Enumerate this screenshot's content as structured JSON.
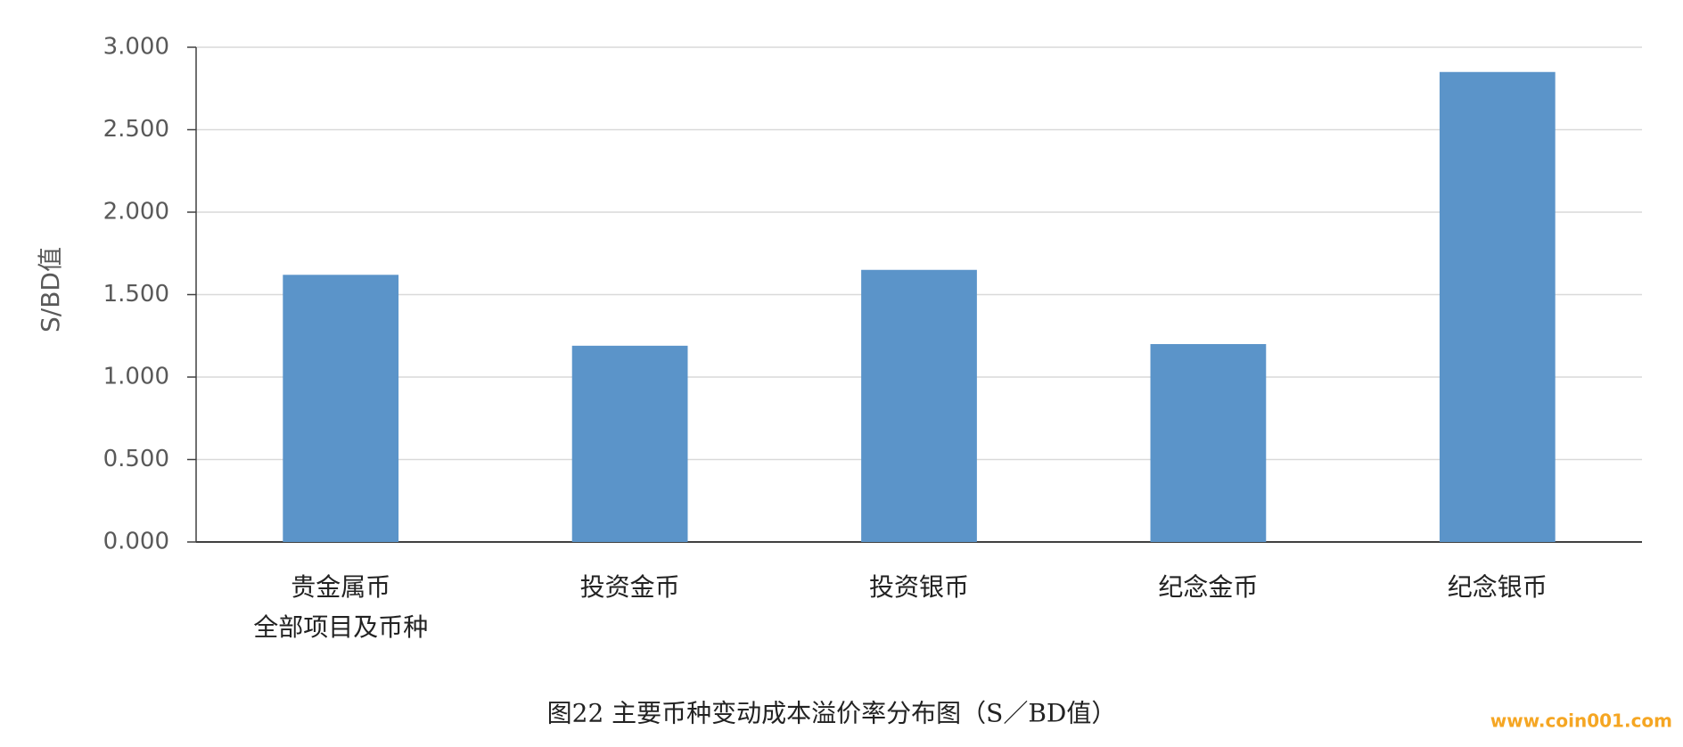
{
  "chart_data": {
    "type": "bar",
    "y_label": "S/BD值",
    "caption": "图22 主要币种变动成本溢价率分布图（S／BD值）",
    "watermark": "www.coin001.com",
    "categories": [
      [
        "贵金属币",
        "全部项目及币种"
      ],
      [
        "投资金币"
      ],
      [
        "投资银币"
      ],
      [
        "纪念金币"
      ],
      [
        "纪念银币"
      ]
    ],
    "values": [
      1.62,
      1.19,
      1.65,
      1.2,
      2.85
    ],
    "color": "#5b94c9",
    "ylim": [
      0,
      3
    ],
    "yticks": [
      {
        "value": 0,
        "label": "0.000"
      },
      {
        "value": 0.5,
        "label": "0.500"
      },
      {
        "value": 1,
        "label": "1.000"
      },
      {
        "value": 1.5,
        "label": "1.500"
      },
      {
        "value": 2,
        "label": "2.000"
      },
      {
        "value": 2.5,
        "label": "2.500"
      },
      {
        "value": 3,
        "label": "3.000"
      }
    ],
    "grid": true
  }
}
